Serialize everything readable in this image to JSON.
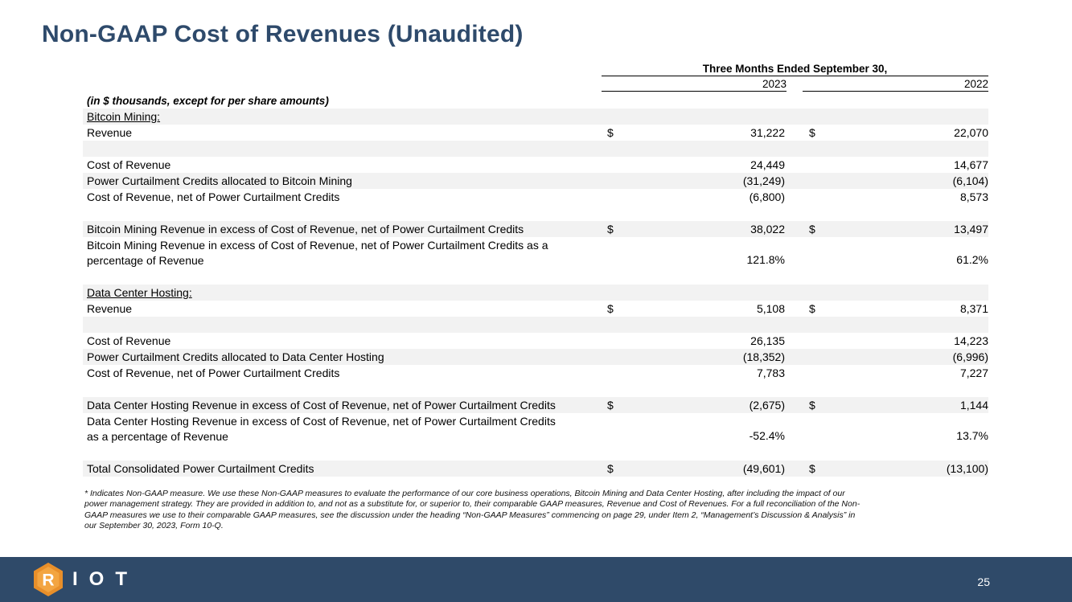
{
  "title": "Non-GAAP Cost of Revenues (Unaudited)",
  "header": {
    "period": "Three Months Ended September 30,",
    "year1": "2023",
    "year2": "2022"
  },
  "units_note": "(in $ thousands, except for per share amounts)",
  "rows": [
    {
      "label": "Bitcoin Mining:",
      "section": true,
      "shade": true
    },
    {
      "label": "Revenue",
      "d1": "$",
      "v1": "31,222",
      "d2": "$",
      "v2": "22,070"
    },
    {
      "label": "",
      "shade": true
    },
    {
      "label": "Cost of Revenue",
      "v1": "24,449",
      "v2": "14,677"
    },
    {
      "label": "Power Curtailment Credits allocated to Bitcoin Mining",
      "v1": "(31,249)",
      "v2": "(6,104)",
      "shade": true
    },
    {
      "label": "Cost of Revenue, net of Power Curtailment Credits",
      "v1": "(6,800)",
      "v2": "8,573"
    },
    {
      "label": ""
    },
    {
      "label": "Bitcoin Mining Revenue in excess of Cost of Revenue, net of Power Curtailment Credits",
      "d1": "$",
      "v1": "38,022",
      "d2": "$",
      "v2": "13,497",
      "shade": true
    },
    {
      "label": "Bitcoin Mining Revenue in excess of Cost of Revenue, net of Power Curtailment Credits as a",
      "label2": "percentage of Revenue",
      "v1": "121.8%",
      "v2": "61.2%",
      "tall": true
    },
    {
      "label": ""
    },
    {
      "label": "Data Center Hosting:",
      "section": true,
      "shade": true
    },
    {
      "label": "Revenue",
      "d1": "$",
      "v1": "5,108",
      "d2": "$",
      "v2": "8,371"
    },
    {
      "label": "",
      "shade": true
    },
    {
      "label": "Cost of Revenue",
      "v1": "26,135",
      "v2": "14,223"
    },
    {
      "label": "Power Curtailment Credits allocated to Data Center Hosting",
      "v1": "(18,352)",
      "v2": "(6,996)",
      "shade": true
    },
    {
      "label": "Cost of Revenue, net of Power Curtailment Credits",
      "v1": "7,783",
      "v2": "7,227"
    },
    {
      "label": ""
    },
    {
      "label": "Data Center Hosting Revenue in excess of Cost of Revenue, net of Power Curtailment Credits",
      "d1": "$",
      "v1": "(2,675)",
      "d2": "$",
      "v2": "1,144",
      "shade": true
    },
    {
      "label": "Data Center Hosting Revenue in excess of Cost of Revenue, net of Power Curtailment Credits",
      "label2": "as a percentage of Revenue",
      "v1": "-52.4%",
      "v2": "13.7%",
      "tall": true
    },
    {
      "label": ""
    },
    {
      "label": "Total Consolidated Power Curtailment Credits",
      "d1": "$",
      "v1": "(49,601)",
      "d2": "$",
      "v2": "(13,100)",
      "shade": true
    }
  ],
  "footnote": {
    "line1": "* Indicates Non-GAAP measure. We use these Non-GAAP measures to evaluate the performance of our core business operations, Bitcoin Mining and Data Center Hosting, after including the impact of our",
    "line2": "power management strategy. They are provided in addition to, and not as a substitute for, or superior to, their comparable GAAP measures, Revenue and Cost of Revenues. For a full reconciliation of the Non-",
    "line3": "GAAP measures we use to their comparable GAAP measures, see the discussion under the heading “Non-GAAP Measures” commencing on page 29, under Item 2, “Management’s Discussion & Analysis” in",
    "line4": "our September 30, 2023, Form 10-Q."
  },
  "footer": {
    "logo_letter": "R",
    "logo_text": "IOT",
    "page_number": "25"
  },
  "colors": {
    "title": "#2e4a6b",
    "footer_bg": "#2f4a69",
    "logo_orange": "#e88f2a",
    "row_shade": "#f2f2f2"
  }
}
